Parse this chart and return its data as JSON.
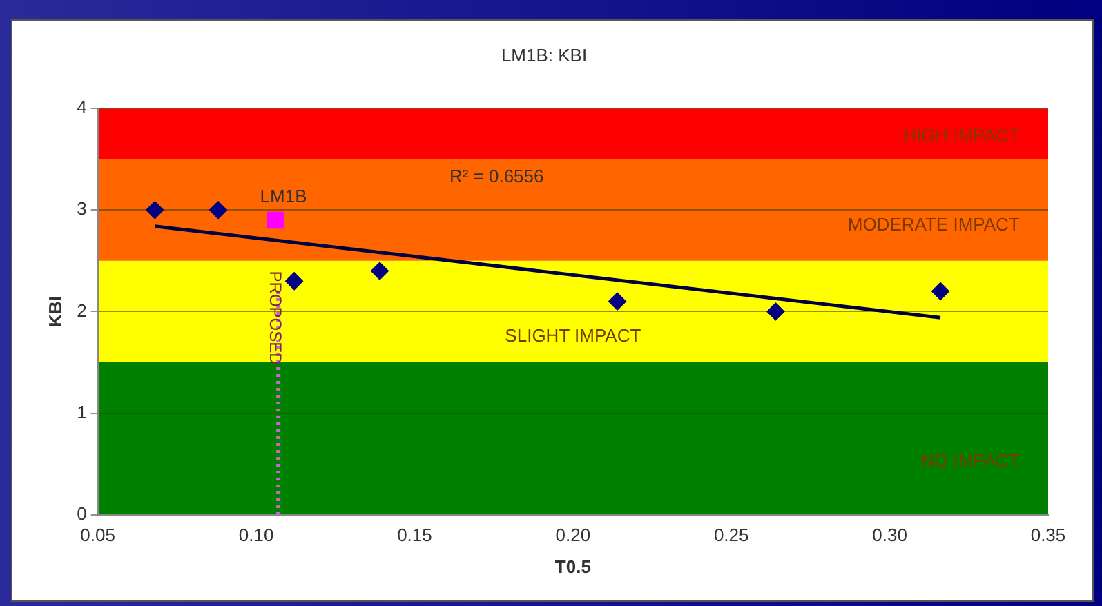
{
  "chart_data": {
    "type": "scatter",
    "title": "LM1B: KBI",
    "xlabel": "T0.5",
    "ylabel": "KBI",
    "xlim": [
      0.05,
      0.35
    ],
    "ylim": [
      0,
      4
    ],
    "xticks": [
      0.05,
      {
        "value": 0.1,
        "label": "0.10"
      },
      0.15,
      {
        "value": 0.2,
        "label": "0.20"
      },
      0.25,
      {
        "value": 0.3,
        "label": "0.30"
      },
      0.35
    ],
    "yticks": [
      0,
      1,
      2,
      3,
      4
    ],
    "grid": "y",
    "legend": false,
    "series": [
      {
        "color": "#000080",
        "marker": "diamond",
        "x": [
          0.068,
          0.088,
          0.112,
          0.139,
          0.214,
          0.264,
          0.316
        ],
        "values": [
          3.0,
          3.0,
          2.3,
          2.4,
          2.1,
          2.0,
          2.2
        ]
      },
      {
        "type": "line",
        "color": "#000040",
        "marker": "none",
        "x": [
          0.068,
          0.316
        ],
        "values": [
          2.84,
          1.94
        ]
      },
      {
        "name": "LM1B",
        "color": "#ff00ff",
        "marker": "square",
        "x": [
          0.106
        ],
        "values": [
          2.9
        ]
      }
    ],
    "bands": [
      {
        "axis": "y",
        "from": 0,
        "to": 1.5,
        "label": "NO IMPACT",
        "color": "#008000"
      },
      {
        "axis": "y",
        "from": 1.5,
        "to": 2.5,
        "label": "SLIGHT IMPACT",
        "color": "#ffff00"
      },
      {
        "axis": "y",
        "from": 2.5,
        "to": 3.5,
        "label": "MODERATE IMPACT",
        "color": "#ff6600"
      },
      {
        "axis": "y",
        "from": 3.5,
        "to": 4,
        "label": "HIGH IMPACT",
        "color": "#ff0000"
      }
    ],
    "ref_lines": [
      {
        "axis": "x",
        "value": 0.107,
        "label": "PROPOSED",
        "color": "#cc66cc",
        "line_style": "dotted"
      }
    ],
    "annotations": [
      "R² = 0.6556"
    ]
  }
}
